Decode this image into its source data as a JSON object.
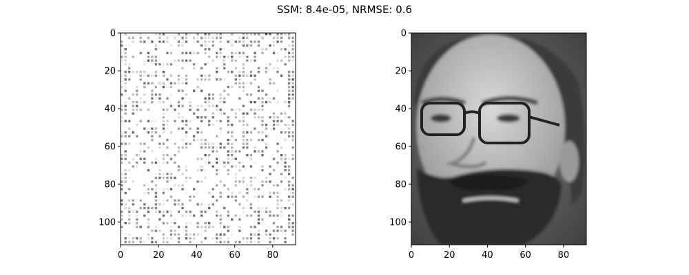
{
  "figure": {
    "title": "SSM: 8.4e-05, NRMSE: 0.6"
  },
  "chart_data": [
    {
      "type": "heatmap",
      "colormap": "gray",
      "description_of_content": "sparse noise",
      "image_shape": [
        112,
        92
      ],
      "xlim": [
        0,
        92
      ],
      "ylim": [
        112,
        0
      ],
      "x_ticks": [
        0,
        20,
        40,
        60,
        80
      ],
      "y_ticks": [
        0,
        20,
        40,
        60,
        80,
        100
      ],
      "x_tick_labels": [
        "0",
        "20",
        "40",
        "60",
        "80"
      ],
      "y_tick_labels": [
        "0",
        "20",
        "40",
        "60",
        "80",
        "100"
      ],
      "grid": false
    },
    {
      "type": "heatmap",
      "colormap": "gray",
      "description_of_content": "grayscale face photo",
      "image_shape": [
        112,
        92
      ],
      "xlim": [
        0,
        92
      ],
      "ylim": [
        112,
        0
      ],
      "x_ticks": [
        0,
        20,
        40,
        60,
        80
      ],
      "y_ticks": [
        0,
        20,
        40,
        60,
        80,
        100
      ],
      "x_tick_labels": [
        "0",
        "20",
        "40",
        "60",
        "80"
      ],
      "y_tick_labels": [
        "0",
        "20",
        "40",
        "60",
        "80",
        "100"
      ],
      "grid": false
    }
  ]
}
